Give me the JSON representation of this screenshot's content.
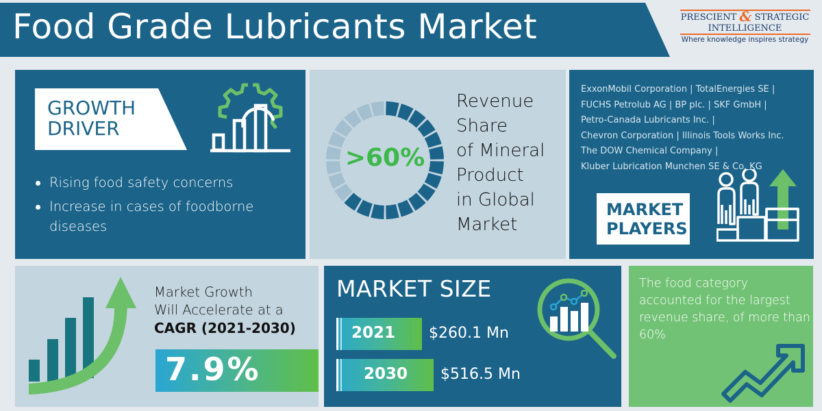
{
  "header": {
    "title": "Food Grade Lubricants Market"
  },
  "logo": {
    "line1_left": "PRESCIENT",
    "line1_amp": "&",
    "line1_right": "STRATEGIC",
    "line2": "INTELLIGENCE",
    "tagline": "Where knowledge inspires strategy",
    "accent_color": "#ec6a2c"
  },
  "growth_driver": {
    "title_line1": "GROWTH",
    "title_line2": "DRIVER",
    "icon": "gear-bar-chart-icon",
    "items": [
      {
        "line1": "Rising food safety concerns",
        "line2": ""
      },
      {
        "line1": "Increase in cases of foodborne",
        "line2": "diseases"
      }
    ]
  },
  "revenue_share": {
    "value": ">60%",
    "label_lines": [
      "Revenue",
      "Share",
      "of Mineral",
      "Product",
      "in Global",
      "Market"
    ],
    "ring_segments_total": 24,
    "ring_segments_filled": 15
  },
  "market_players": {
    "lines": [
      "ExxonMobil Corporation | TotalEnergies SE |",
      "FUCHS Petrolub AG | BP plc. | SKF GmbH |",
      "Petro-Canada Lubricants Inc. |",
      "Chevron Corporation | Illinois Tools Works Inc.",
      "The DOW Chemical Company |",
      "Kluber Lubrication Munchen SE & Co. KG"
    ],
    "title_line1": "MARKET",
    "title_line2": "PLAYERS",
    "icon": "people-podium-arrow-icon"
  },
  "cagr": {
    "line1": "Market Growth",
    "line2": "Will Accelerate at a",
    "line3": "CAGR (2021-2030)",
    "value": "7.9%",
    "icon": "rising-bars-arrow-icon"
  },
  "market_size": {
    "title": "MARKET SIZE",
    "rows": [
      {
        "year": "2021",
        "amount": "$260.1 Mn"
      },
      {
        "year": "2030",
        "amount": "$516.5 Mn"
      }
    ],
    "icon": "magnifier-chart-icon"
  },
  "food_category": {
    "text": "The food category accounted for the largest revenue share, of more than 60%",
    "icon": "trend-up-arrow-icon"
  },
  "colors": {
    "dark_blue": "#1b6389",
    "light_blue": "#c3d5df",
    "green": "#72c275",
    "accent_green": "#3db84b",
    "background": "#e4eaed"
  }
}
